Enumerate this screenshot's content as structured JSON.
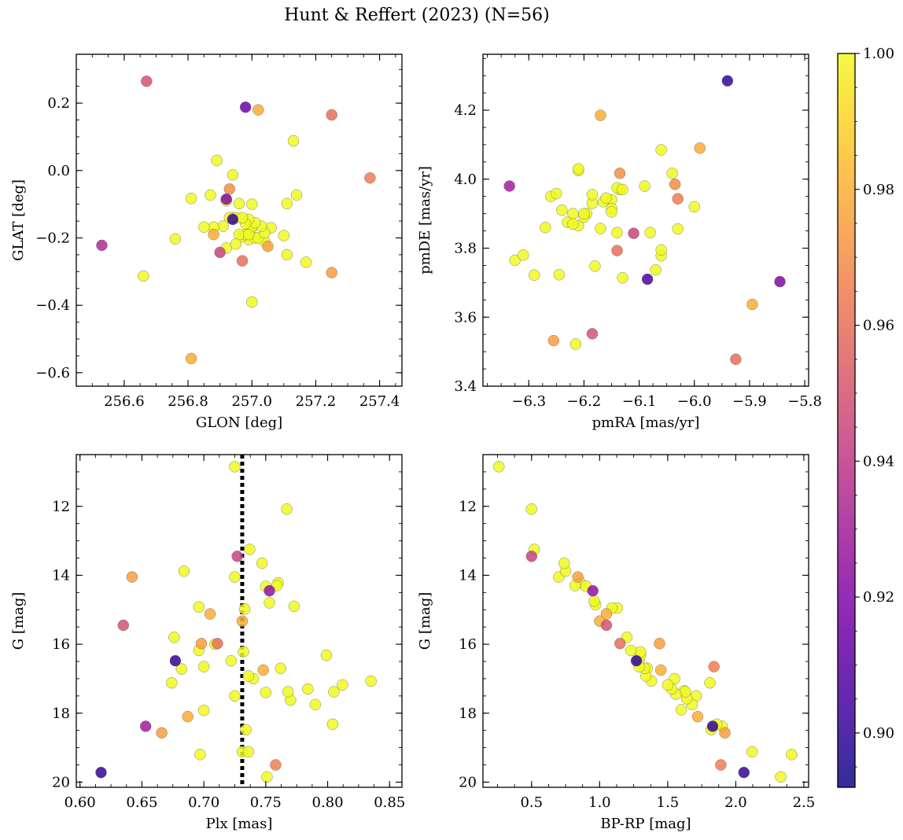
{
  "figure": {
    "title": "Hunt & Reffert (2023) (N=56)"
  },
  "colorbar": {
    "min": 0.892,
    "max": 1.0,
    "ticks": [
      0.9,
      0.92,
      0.94,
      0.96,
      0.98,
      1.0
    ],
    "tick_labels": [
      "0.90",
      "0.92",
      "0.94",
      "0.96",
      "0.98",
      "1.00"
    ],
    "colormap": "plasma",
    "colormap_stops": [
      "#0d0887",
      "#46039f",
      "#7201a8",
      "#9c179e",
      "#bd3786",
      "#d8576b",
      "#ed7953",
      "#fb9f3a",
      "#fdca26",
      "#f0f921"
    ]
  },
  "chart_data": [
    {
      "type": "scatter",
      "id": "glon-glat",
      "xlabel": "GLON [deg]",
      "ylabel": "GLAT [deg]",
      "xlim": [
        256.45,
        257.47
      ],
      "ylim": [
        -0.64,
        0.345
      ],
      "xticks": [
        256.6,
        256.8,
        257.0,
        257.2,
        257.4
      ],
      "xtick_labels": [
        "256.6",
        "256.8",
        "257.0",
        "257.2",
        "257.4"
      ],
      "yticks": [
        -0.6,
        -0.4,
        -0.2,
        0.0,
        0.2
      ],
      "ytick_labels": [
        "−0.6",
        "−0.4",
        "−0.2",
        "0.0",
        "0.2"
      ],
      "x": [
        256.67,
        256.98,
        257.02,
        257.25,
        257.37,
        257.13,
        256.89,
        256.94,
        256.93,
        256.92,
        256.87,
        256.81,
        256.96,
        257.0,
        257.14,
        257.11,
        256.93,
        256.94,
        256.97,
        256.98,
        256.99,
        257.01,
        257.03,
        256.85,
        256.88,
        256.91,
        256.99,
        257.04,
        257.06,
        257.1,
        256.76,
        256.95,
        257.02,
        256.96,
        257.05,
        256.9,
        256.92,
        256.97,
        257.11,
        257.17,
        257.25,
        256.66,
        257.0,
        256.81,
        256.53,
        256.95,
        256.98,
        257.0,
        257.01,
        256.97,
        256.92,
        257.04,
        256.88,
        257.0,
        256.94,
        256.99
      ],
      "y": [
        0.265,
        0.188,
        0.18,
        0.165,
        -0.022,
        0.088,
        0.03,
        -0.013,
        -0.055,
        -0.085,
        -0.073,
        -0.083,
        -0.098,
        -0.1,
        -0.073,
        -0.098,
        -0.14,
        -0.145,
        -0.14,
        -0.158,
        -0.145,
        -0.155,
        -0.165,
        -0.168,
        -0.168,
        -0.165,
        -0.19,
        -0.185,
        -0.17,
        -0.193,
        -0.203,
        -0.218,
        -0.2,
        -0.19,
        -0.225,
        -0.243,
        -0.23,
        -0.268,
        -0.25,
        -0.272,
        -0.303,
        -0.313,
        -0.39,
        -0.558,
        -0.222,
        -0.14,
        -0.19,
        -0.165,
        -0.2,
        -0.195,
        -0.09,
        -0.21,
        -0.19,
        -0.17,
        -0.14,
        -0.205
      ],
      "c": [
        0.95,
        0.915,
        0.98,
        0.96,
        0.965,
        1.0,
        1.0,
        1.0,
        0.97,
        0.92,
        1.0,
        1.0,
        1.0,
        1.0,
        1.0,
        1.0,
        1.0,
        0.9,
        1.0,
        1.0,
        1.0,
        1.0,
        1.0,
        1.0,
        1.0,
        1.0,
        1.0,
        1.0,
        1.0,
        1.0,
        1.0,
        1.0,
        1.0,
        1.0,
        0.975,
        0.945,
        1.0,
        0.96,
        1.0,
        1.0,
        0.975,
        1.0,
        1.0,
        0.98,
        0.935,
        1.0,
        1.0,
        1.0,
        1.0,
        1.0,
        1.0,
        1.0,
        0.98,
        1.0,
        1.0,
        1.0
      ]
    },
    {
      "type": "scatter",
      "id": "pmra-pmde",
      "xlabel": "pmRA [mas/yr]",
      "ylabel": "pmDE [mas/yr]",
      "xlim": [
        -6.383,
        -5.793
      ],
      "ylim": [
        3.4,
        4.362
      ],
      "xticks": [
        -6.3,
        -6.2,
        -6.1,
        -6.0,
        -5.9,
        -5.8
      ],
      "xtick_labels": [
        "−6.3",
        "−6.2",
        "−6.1",
        "−6.0",
        "−5.9",
        "−5.8"
      ],
      "yticks": [
        3.4,
        3.6,
        3.8,
        4.0,
        4.2
      ],
      "ytick_labels": [
        "3.4",
        "3.6",
        "3.8",
        "4.0",
        "4.2"
      ],
      "x": [
        -5.94,
        -6.17,
        -5.99,
        -6.06,
        -6.21,
        -6.21,
        -6.135,
        -6.04,
        -6.335,
        -6.25,
        -6.26,
        -6.16,
        -6.185,
        -6.2,
        -6.13,
        -6.09,
        -6.03,
        -6.0,
        -6.14,
        -6.165,
        -6.185,
        -6.2,
        -6.24,
        -6.22,
        -6.15,
        -6.23,
        -6.27,
        -6.21,
        -6.22,
        -6.15,
        -6.11,
        -6.03,
        -6.14,
        -6.08,
        -6.31,
        -6.325,
        -6.06,
        -6.06,
        -6.18,
        -6.07,
        -6.13,
        -6.29,
        -6.245,
        -6.085,
        -5.845,
        -5.895,
        -6.185,
        -6.255,
        -6.215,
        -5.925,
        -6.135,
        -6.15,
        -6.17,
        -6.195,
        -6.035,
        -6.14
      ],
      "y": [
        4.285,
        4.185,
        4.09,
        4.085,
        4.03,
        4.025,
        4.017,
        4.017,
        3.98,
        3.958,
        3.95,
        3.945,
        3.955,
        3.9,
        3.97,
        3.98,
        3.943,
        3.92,
        3.975,
        3.935,
        3.93,
        3.89,
        3.91,
        3.87,
        3.905,
        3.875,
        3.86,
        3.865,
        3.9,
        3.915,
        3.843,
        3.856,
        3.793,
        3.845,
        3.78,
        3.765,
        3.795,
        3.778,
        3.748,
        3.737,
        3.714,
        3.722,
        3.723,
        3.71,
        3.703,
        3.637,
        3.552,
        3.532,
        3.522,
        3.478,
        3.97,
        3.94,
        3.857,
        3.9,
        3.985,
        3.845
      ],
      "c": [
        0.9,
        0.98,
        0.98,
        1.0,
        1.0,
        1.0,
        0.97,
        1.0,
        0.93,
        1.0,
        1.0,
        1.0,
        1.0,
        1.0,
        1.0,
        1.0,
        0.965,
        1.0,
        1.0,
        1.0,
        1.0,
        1.0,
        1.0,
        1.0,
        1.0,
        1.0,
        1.0,
        1.0,
        1.0,
        1.0,
        0.945,
        1.0,
        0.96,
        1.0,
        1.0,
        1.0,
        1.0,
        1.0,
        1.0,
        1.0,
        1.0,
        1.0,
        1.0,
        0.905,
        0.92,
        0.98,
        0.95,
        0.975,
        1.0,
        0.96,
        1.0,
        1.0,
        1.0,
        1.0,
        0.97,
        1.0
      ]
    },
    {
      "type": "scatter",
      "id": "plx-g",
      "xlabel": "Plx [mas]",
      "ylabel": "G [mag]",
      "xlim": [
        0.597,
        0.86
      ],
      "ylim": [
        20.15,
        10.5
      ],
      "yaxis_inverted": true,
      "vline": {
        "x": 0.731,
        "style": "dotted",
        "color": "#000000"
      },
      "xticks": [
        0.6,
        0.65,
        0.7,
        0.75,
        0.8,
        0.85
      ],
      "xtick_labels": [
        "0.60",
        "0.65",
        "0.70",
        "0.75",
        "0.80",
        "0.85"
      ],
      "yticks": [
        12,
        14,
        16,
        18,
        20
      ],
      "ytick_labels": [
        "12",
        "14",
        "16",
        "18",
        "20"
      ],
      "x": [
        0.725,
        0.767,
        0.737,
        0.727,
        0.747,
        0.642,
        0.684,
        0.75,
        0.759,
        0.753,
        0.76,
        0.725,
        0.753,
        0.696,
        0.731,
        0.705,
        0.635,
        0.676,
        0.698,
        0.711,
        0.696,
        0.732,
        0.722,
        0.677,
        0.682,
        0.736,
        0.762,
        0.799,
        0.7,
        0.74,
        0.748,
        0.75,
        0.784,
        0.768,
        0.805,
        0.812,
        0.835,
        0.674,
        0.77,
        0.725,
        0.7,
        0.79,
        0.734,
        0.804,
        0.653,
        0.687,
        0.666,
        0.736,
        0.617,
        0.731,
        0.697,
        0.758,
        0.751,
        0.773,
        0.733,
        0.709
      ],
      "y": [
        10.85,
        12.08,
        13.25,
        13.45,
        13.65,
        14.05,
        13.88,
        14.32,
        14.3,
        14.45,
        14.22,
        14.05,
        14.8,
        14.92,
        15.33,
        15.12,
        15.45,
        15.8,
        15.98,
        15.98,
        16.18,
        16.22,
        16.48,
        16.48,
        16.72,
        16.92,
        16.7,
        16.32,
        16.65,
        17.0,
        16.75,
        17.4,
        17.3,
        17.38,
        17.38,
        17.18,
        17.07,
        17.12,
        17.62,
        17.5,
        17.92,
        17.75,
        18.48,
        18.32,
        18.38,
        18.1,
        18.57,
        19.12,
        19.72,
        19.12,
        19.2,
        19.5,
        19.85,
        14.9,
        14.98,
        16.0
      ],
      "c": [
        1.0,
        1.0,
        1.0,
        0.945,
        1.0,
        0.975,
        1.0,
        1.0,
        1.0,
        0.925,
        1.0,
        1.0,
        1.0,
        1.0,
        0.98,
        0.98,
        0.95,
        1.0,
        0.975,
        0.96,
        1.0,
        1.0,
        1.0,
        0.9,
        1.0,
        1.0,
        1.0,
        1.0,
        1.0,
        1.0,
        0.98,
        1.0,
        1.0,
        1.0,
        1.0,
        1.0,
        1.0,
        1.0,
        1.0,
        1.0,
        1.0,
        1.0,
        1.0,
        1.0,
        0.93,
        0.98,
        0.975,
        1.0,
        0.9,
        1.0,
        1.0,
        0.965,
        1.0,
        1.0,
        1.0,
        1.0
      ]
    },
    {
      "type": "scatter",
      "id": "bprp-g",
      "xlabel": "BP-RP [mag]",
      "ylabel": "G [mag]",
      "xlim": [
        0.143,
        2.535
      ],
      "ylim": [
        20.15,
        10.5
      ],
      "yaxis_inverted": true,
      "xticks": [
        0.5,
        1.0,
        1.5,
        2.0,
        2.5
      ],
      "xtick_labels": [
        "0.5",
        "1.0",
        "1.5",
        "2.0",
        "2.5"
      ],
      "yticks": [
        12,
        14,
        16,
        18,
        20
      ],
      "ytick_labels": [
        "12",
        "14",
        "16",
        "18",
        "20"
      ],
      "x": [
        0.26,
        0.5,
        0.52,
        0.5,
        0.74,
        0.75,
        0.7,
        0.84,
        0.82,
        0.9,
        0.95,
        0.86,
        0.96,
        0.97,
        1.0,
        1.05,
        1.09,
        1.05,
        1.13,
        1.15,
        1.2,
        1.23,
        1.27,
        1.3,
        1.3,
        1.29,
        1.33,
        1.34,
        1.38,
        1.44,
        1.45,
        1.5,
        1.55,
        1.53,
        1.56,
        1.6,
        1.63,
        1.64,
        1.68,
        1.71,
        1.72,
        1.81,
        1.82,
        1.84,
        1.83,
        1.86,
        1.9,
        1.89,
        1.92,
        2.06,
        2.12,
        2.33,
        2.41,
        1.29,
        1.35,
        1.62
      ],
      "y": [
        10.85,
        12.08,
        13.25,
        13.45,
        13.65,
        13.88,
        14.05,
        14.05,
        14.3,
        14.32,
        14.45,
        14.22,
        14.75,
        14.85,
        15.33,
        15.12,
        14.95,
        15.45,
        14.95,
        15.98,
        15.8,
        16.18,
        16.48,
        16.22,
        16.32,
        16.65,
        16.7,
        16.92,
        17.07,
        15.98,
        16.75,
        17.18,
        17.0,
        17.3,
        17.45,
        17.9,
        17.38,
        17.58,
        17.75,
        17.5,
        18.1,
        17.12,
        18.48,
        16.65,
        18.38,
        18.32,
        18.38,
        19.5,
        18.57,
        19.72,
        19.12,
        19.85,
        19.2,
        16.45,
        16.7,
        17.35
      ],
      "c": [
        1.0,
        1.0,
        1.0,
        0.945,
        1.0,
        1.0,
        1.0,
        0.975,
        1.0,
        1.0,
        0.925,
        1.0,
        1.0,
        1.0,
        0.98,
        0.98,
        1.0,
        0.95,
        1.0,
        0.96,
        1.0,
        1.0,
        0.9,
        1.0,
        1.0,
        1.0,
        1.0,
        1.0,
        1.0,
        0.975,
        0.98,
        1.0,
        1.0,
        1.0,
        1.0,
        1.0,
        1.0,
        1.0,
        1.0,
        1.0,
        0.98,
        1.0,
        1.0,
        0.965,
        0.9,
        1.0,
        1.0,
        0.965,
        0.975,
        0.9,
        1.0,
        1.0,
        1.0,
        1.0,
        1.0,
        1.0
      ]
    }
  ]
}
